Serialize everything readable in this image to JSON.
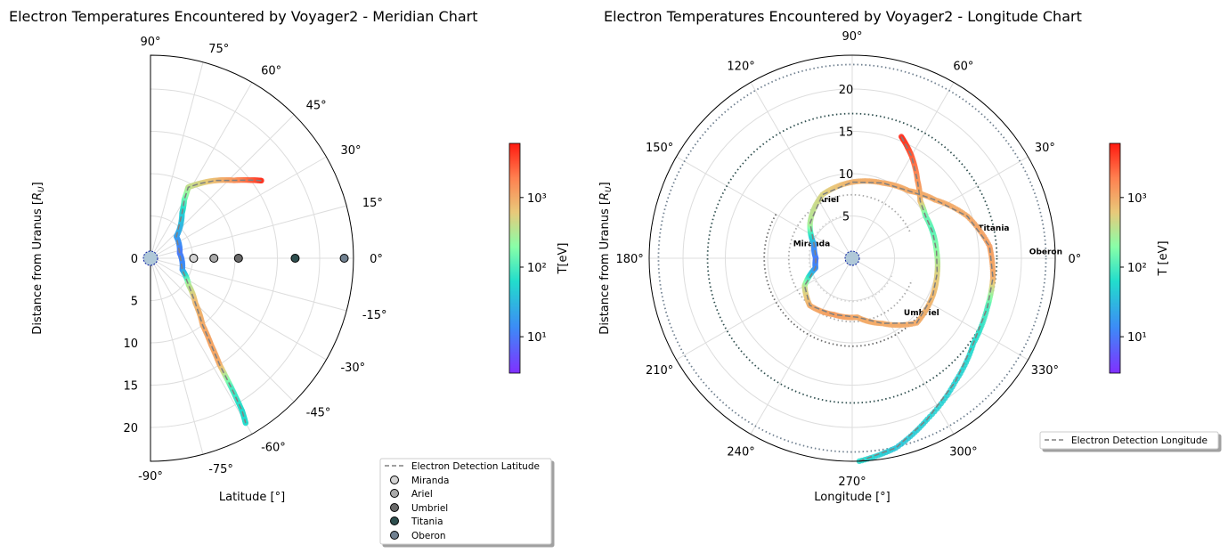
{
  "chart_data": [
    {
      "type": "polar-scatter",
      "title": "Electron Temperatures Encountered by Voyager2 - Meridian Chart",
      "xlabel": "Latitude [°]",
      "ylabel": "Distance from Uranus [R_U]",
      "ylabel_main": "Distance from Uranus [",
      "ylabel_sym": "R",
      "ylabel_sub": "U",
      "ylabel_end": "]",
      "theta_range": [
        -90,
        90
      ],
      "r_range": [
        0,
        24
      ],
      "theta_ticks": [
        "-90°",
        "-75°",
        "-60°",
        "-45°",
        "-30°",
        "-15°",
        "0°",
        "15°",
        "30°",
        "45°",
        "60°",
        "75°",
        "90°"
      ],
      "theta_tick_values": [
        -90,
        -75,
        -60,
        -45,
        -30,
        -15,
        0,
        15,
        30,
        45,
        60,
        75,
        90
      ],
      "r_ticks": [
        "0",
        "5",
        "10",
        "15",
        "20"
      ],
      "r_tick_values": [
        0,
        5,
        10,
        15,
        20
      ],
      "grid": true,
      "colorbar": {
        "label": "T[eV]",
        "scale": "log",
        "range": [
          3,
          6000
        ],
        "ticks": [
          "10¹",
          "10²",
          "10³"
        ],
        "tick_values": [
          10,
          100,
          1000
        ]
      },
      "legend": {
        "placement": "lower-right",
        "entries": [
          {
            "label": "Electron Detection Latitude",
            "marker": "dashed-line",
            "color": "#808080"
          },
          {
            "label": "Miranda",
            "marker": "circle",
            "color": "#d3d3d3"
          },
          {
            "label": "Ariel",
            "marker": "circle",
            "color": "#a9a9a9"
          },
          {
            "label": "Umbriel",
            "marker": "circle",
            "color": "#696969"
          },
          {
            "label": "Titania",
            "marker": "circle",
            "color": "#2f4f4f"
          },
          {
            "label": "Oberon",
            "marker": "circle",
            "color": "#708090"
          }
        ]
      },
      "moons": [
        {
          "name": "Miranda",
          "latitude": 0,
          "distance": 5.1,
          "color": "#d3d3d3"
        },
        {
          "name": "Ariel",
          "latitude": 0,
          "distance": 7.5,
          "color": "#a9a9a9"
        },
        {
          "name": "Umbriel",
          "latitude": 0,
          "distance": 10.4,
          "color": "#696969"
        },
        {
          "name": "Titania",
          "latitude": 0,
          "distance": 17.1,
          "color": "#2f4f4f"
        },
        {
          "name": "Oberon",
          "latitude": 0,
          "distance": 22.9,
          "color": "#708090"
        }
      ],
      "trajectory": [
        {
          "latitude": 35,
          "distance": 16.0,
          "T": 5000
        },
        {
          "latitude": 38,
          "distance": 15.0,
          "T": 3000
        },
        {
          "latitude": 43,
          "distance": 13.5,
          "T": 1500
        },
        {
          "latitude": 50,
          "distance": 12.0,
          "T": 800
        },
        {
          "latitude": 57,
          "distance": 10.5,
          "T": 500
        },
        {
          "latitude": 62,
          "distance": 9.5,
          "T": 400
        },
        {
          "latitude": 60,
          "distance": 8.0,
          "T": 150
        },
        {
          "latitude": 55,
          "distance": 6.5,
          "T": 50
        },
        {
          "latitude": 40,
          "distance": 4.0,
          "T": 20
        },
        {
          "latitude": 10,
          "distance": 3.5,
          "T": 10
        },
        {
          "latitude": -20,
          "distance": 4.0,
          "T": 15
        },
        {
          "latitude": -35,
          "distance": 5.5,
          "T": 300
        },
        {
          "latitude": -45,
          "distance": 7.5,
          "T": 800
        },
        {
          "latitude": -52,
          "distance": 10.0,
          "T": 1000
        },
        {
          "latitude": -55,
          "distance": 12.5,
          "T": 1100
        },
        {
          "latitude": -57,
          "distance": 15.0,
          "T": 1000
        },
        {
          "latitude": -58,
          "distance": 18.0,
          "T": 100
        },
        {
          "latitude": -59,
          "distance": 21.0,
          "T": 60
        },
        {
          "latitude": -60,
          "distance": 22.5,
          "T": 60
        }
      ]
    },
    {
      "type": "polar-scatter",
      "title": "Electron Temperatures Encountered by Voyager2 - Longitude Chart",
      "xlabel": "Longitude [°]",
      "ylabel": "Distance from Uranus [R_U]",
      "ylabel_main": "Distance from Uranus [",
      "ylabel_sym": "R",
      "ylabel_sub": "U",
      "ylabel_end": "]",
      "theta_range": [
        0,
        360
      ],
      "r_range": [
        0,
        24
      ],
      "theta_ticks": [
        "0°",
        "30°",
        "60°",
        "90°",
        "120°",
        "150°",
        "180°",
        "210°",
        "240°",
        "270°",
        "300°",
        "330°"
      ],
      "theta_tick_values": [
        0,
        30,
        60,
        90,
        120,
        150,
        180,
        210,
        240,
        270,
        300,
        330
      ],
      "r_ticks": [
        "5",
        "10",
        "15",
        "20"
      ],
      "r_tick_values": [
        5,
        10,
        15,
        20
      ],
      "grid": true,
      "colorbar": {
        "label": "T [eV]",
        "scale": "log",
        "range": [
          3,
          6000
        ],
        "ticks": [
          "10¹",
          "10²",
          "10³"
        ],
        "tick_values": [
          10,
          100,
          1000
        ]
      },
      "legend": {
        "placement": "lower-right",
        "entries": [
          {
            "label": "Electron Detection Longitude",
            "marker": "dashed-line",
            "color": "#808080"
          }
        ]
      },
      "moons": [
        {
          "name": "Miranda",
          "distance": 5.1,
          "label_angle": 160,
          "arc": [
            100,
            340
          ],
          "color": "#d3d3d3"
        },
        {
          "name": "Ariel",
          "distance": 7.5,
          "label_angle": 112,
          "arc": [
            25,
            340
          ],
          "color": "#a9a9a9"
        },
        {
          "name": "Umbriel",
          "distance": 10.4,
          "label_angle": 322,
          "arc": [
            150,
            340
          ],
          "color": "#696969"
        },
        {
          "name": "Titania",
          "distance": 17.1,
          "label_angle": 12,
          "arc": [
            0,
            360
          ],
          "color": "#2f4f4f"
        },
        {
          "name": "Oberon",
          "distance": 22.9,
          "label_angle": 2,
          "arc": [
            0,
            360
          ],
          "color": "#708090"
        }
      ],
      "trajectory": [
        {
          "longitude": 68,
          "distance": 15.5,
          "T": 5000
        },
        {
          "longitude": 60,
          "distance": 14.0,
          "T": 3000
        },
        {
          "longitude": 50,
          "distance": 12.0,
          "T": 1500
        },
        {
          "longitude": 40,
          "distance": 10.5,
          "T": 800
        },
        {
          "longitude": 30,
          "distance": 10.0,
          "T": 150
        },
        {
          "longitude": 18,
          "distance": 10.0,
          "T": 120
        },
        {
          "longitude": 5,
          "distance": 10.0,
          "T": 200
        },
        {
          "longitude": 350,
          "distance": 10.2,
          "T": 500
        },
        {
          "longitude": 335,
          "distance": 10.5,
          "T": 800
        },
        {
          "longitude": 315,
          "distance": 10.8,
          "T": 1000
        },
        {
          "longitude": 295,
          "distance": 8.5,
          "T": 1000
        },
        {
          "longitude": 275,
          "distance": 7.0,
          "T": 1000
        },
        {
          "longitude": 252,
          "distance": 7.0,
          "T": 1200
        },
        {
          "longitude": 228,
          "distance": 7.5,
          "T": 1000
        },
        {
          "longitude": 210,
          "distance": 6.5,
          "T": 400
        },
        {
          "longitude": 195,
          "distance": 4.5,
          "T": 15
        },
        {
          "longitude": 180,
          "distance": 4.3,
          "T": 10
        },
        {
          "longitude": 160,
          "distance": 4.8,
          "T": 15
        },
        {
          "longitude": 140,
          "distance": 6.5,
          "T": 300
        },
        {
          "longitude": 115,
          "distance": 8.3,
          "T": 500
        },
        {
          "longitude": 90,
          "distance": 9.0,
          "T": 900
        },
        {
          "longitude": 68,
          "distance": 9.6,
          "T": 1000
        },
        {
          "longitude": 50,
          "distance": 10.4,
          "T": 1000
        },
        {
          "longitude": 35,
          "distance": 12.0,
          "T": 1000
        },
        {
          "longitude": 20,
          "distance": 14.5,
          "T": 1000
        },
        {
          "longitude": 5,
          "distance": 16.3,
          "T": 1200
        },
        {
          "longitude": 352,
          "distance": 16.8,
          "T": 1000
        },
        {
          "longitude": 340,
          "distance": 17.0,
          "T": 100
        },
        {
          "longitude": 325,
          "distance": 17.5,
          "T": 60
        },
        {
          "longitude": 310,
          "distance": 19.0,
          "T": 50
        },
        {
          "longitude": 295,
          "distance": 21.0,
          "T": 50
        },
        {
          "longitude": 283,
          "distance": 23.0,
          "T": 40
        },
        {
          "longitude": 272,
          "distance": 24.0,
          "T": 60
        }
      ]
    }
  ]
}
